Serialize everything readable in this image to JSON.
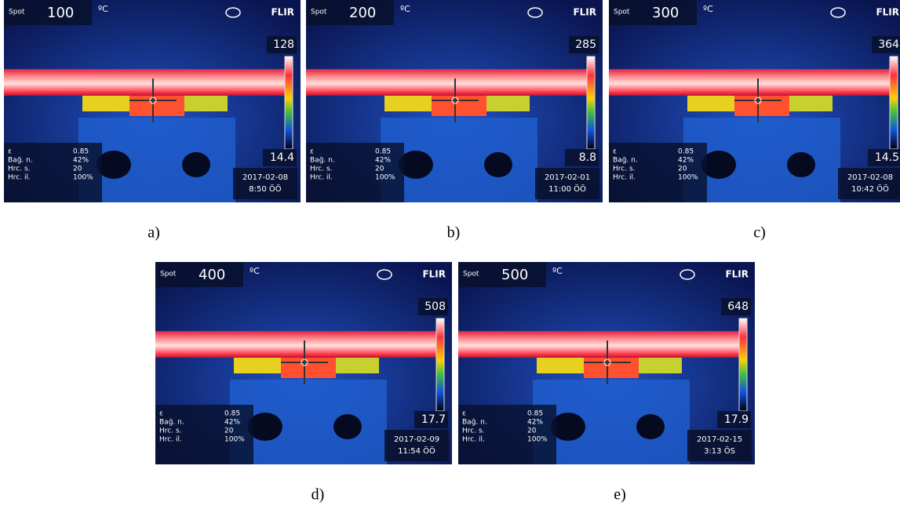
{
  "panels": [
    {
      "spot_label": "Spot",
      "spot_value": "100",
      "unit": "ºC",
      "logo": "FLIR",
      "scale_max": "128",
      "scale_min": "14.4",
      "params": [
        [
          "ε",
          "0.85"
        ],
        [
          "Bağ. n.",
          "42%"
        ],
        [
          "Hrc. s.",
          "20"
        ],
        [
          "Hrc. il.",
          "100%"
        ]
      ],
      "date": "2017-02-08",
      "time": "8:50 ÖÖ",
      "caption": "a)"
    },
    {
      "spot_label": "Spot",
      "spot_value": "200",
      "unit": "ºC",
      "logo": "FLIR",
      "scale_max": "285",
      "scale_min": "8.8",
      "params": [
        [
          "ε",
          "0.85"
        ],
        [
          "Bağ. n.",
          "42%"
        ],
        [
          "Hrc. s.",
          "20"
        ],
        [
          "Hrc. il.",
          "100%"
        ]
      ],
      "date": "2017-02-01",
      "time": "11:00 ÖÖ",
      "caption": "b)"
    },
    {
      "spot_label": "Spot",
      "spot_value": "300",
      "unit": "ºC",
      "logo": "FLIR",
      "scale_max": "364",
      "scale_min": "14.5",
      "params": [
        [
          "ε",
          "0.85"
        ],
        [
          "Bağ. n.",
          "42%"
        ],
        [
          "Hrc. s.",
          "20"
        ],
        [
          "Hrc. il.",
          "100%"
        ]
      ],
      "date": "2017-02-08",
      "time": "10:42 ÖÖ",
      "caption": "c)"
    },
    {
      "spot_label": "Spot",
      "spot_value": "400",
      "unit": "ºC",
      "logo": "FLIR",
      "scale_max": "508",
      "scale_min": "17.7",
      "params": [
        [
          "ε",
          "0.85"
        ],
        [
          "Bağ. n.",
          "42%"
        ],
        [
          "Hrc. s.",
          "20"
        ],
        [
          "Hrc. il.",
          "100%"
        ]
      ],
      "date": "2017-02-09",
      "time": "11:54 ÖÖ",
      "caption": "d)"
    },
    {
      "spot_label": "Spot",
      "spot_value": "500",
      "unit": "ºC",
      "logo": "FLIR",
      "scale_max": "648",
      "scale_min": "17.9",
      "params": [
        [
          "ε",
          "0.85"
        ],
        [
          "Bağ. n.",
          "42%"
        ],
        [
          "Hrc. s.",
          "20"
        ],
        [
          "Hrc. il.",
          "100%"
        ]
      ],
      "date": "2017-02-15",
      "time": "3:13 ÖS",
      "caption": "e)"
    }
  ]
}
